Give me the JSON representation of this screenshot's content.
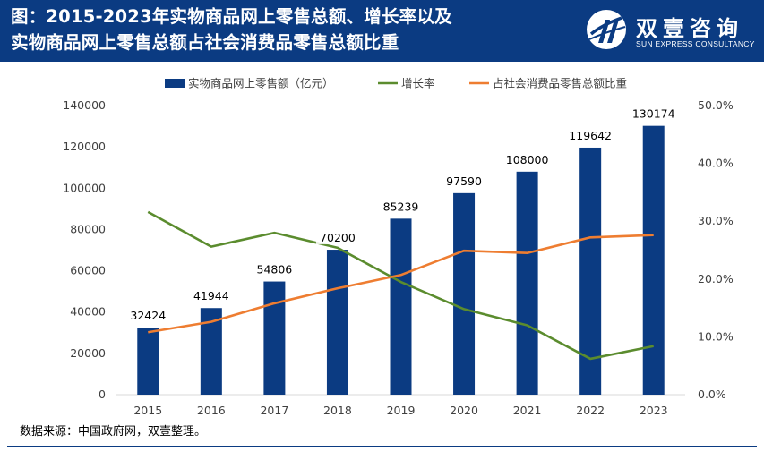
{
  "header": {
    "title_line1": "图：2015-2023年实物商品网上零售总额、增长率以及",
    "title_line2": "实物商品网上零售总额占社会消费品零售总额比重",
    "logo_name": "双壹咨询",
    "logo_sub": "SUN EXPRESS CONSULTANCY",
    "bg_color": "#0b3b82"
  },
  "source": "数据来源：中国政府网，双壹整理。",
  "chart_data": {
    "type": "bar",
    "title": "2015-2023年实物商品网上零售总额、增长率以及实物商品网上零售总额占社会消费品零售总额比重",
    "categories": [
      "2015",
      "2016",
      "2017",
      "2018",
      "2019",
      "2020",
      "2021",
      "2022",
      "2023"
    ],
    "legend_position": "top",
    "series": [
      {
        "name": "实物商品网上零售额（亿元）",
        "kind": "bar",
        "axis": "left",
        "color": "#0b3b82",
        "values": [
          32424,
          41944,
          54806,
          70200,
          85239,
          97590,
          108000,
          119642,
          130174
        ],
        "labels": [
          "32424",
          "41944",
          "54806",
          "70200",
          "85239",
          "97590",
          "108000",
          "119642",
          "130174"
        ]
      },
      {
        "name": "增长率",
        "kind": "line",
        "axis": "right",
        "color": "#5b8c2e",
        "values": [
          31.6,
          25.6,
          28.0,
          25.4,
          19.5,
          14.8,
          12.0,
          6.2,
          8.4
        ]
      },
      {
        "name": "占社会消费品零售总额比重",
        "kind": "line",
        "axis": "right",
        "color": "#ee7d31",
        "values": [
          10.8,
          12.6,
          15.8,
          18.4,
          20.7,
          24.9,
          24.5,
          27.2,
          27.6
        ]
      }
    ],
    "y_left": {
      "min": 0,
      "max": 140000,
      "ticks": [
        "0",
        "20000",
        "40000",
        "60000",
        "80000",
        "100000",
        "120000",
        "140000"
      ]
    },
    "y_right": {
      "min": 0,
      "max": 50,
      "ticks": [
        "0.0%",
        "10.0%",
        "20.0%",
        "30.0%",
        "40.0%",
        "50.0%"
      ]
    },
    "grid": false
  }
}
